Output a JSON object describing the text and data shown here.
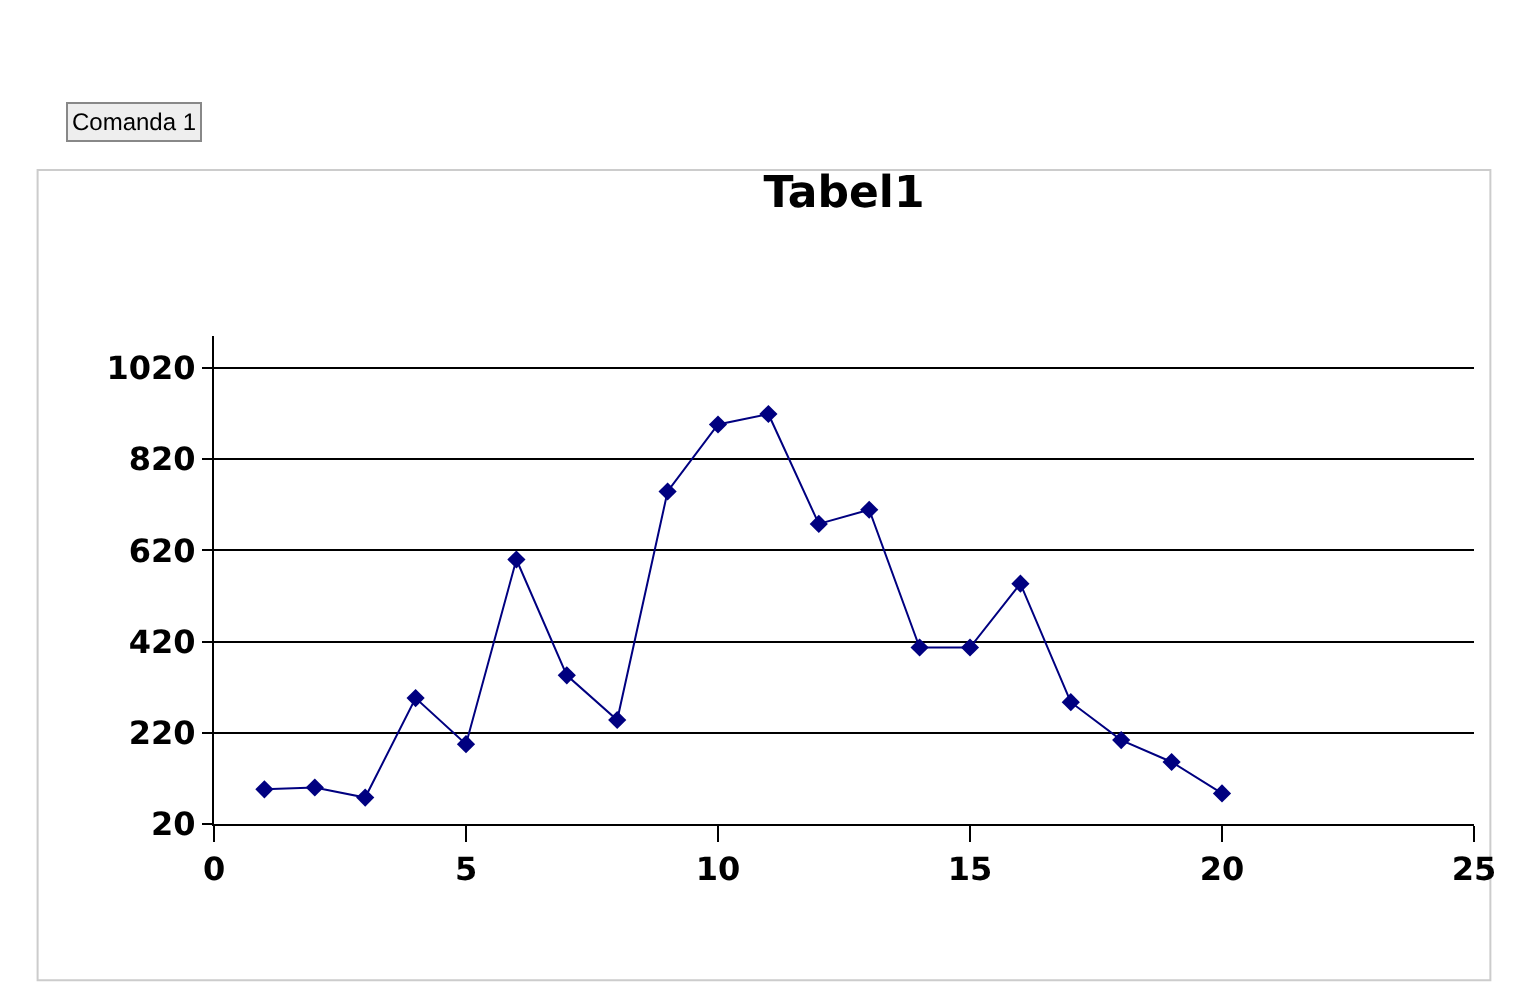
{
  "chart_data": {
    "type": "line",
    "title": "Tabel1",
    "annotations": [
      "Comanda 1"
    ],
    "x": [
      1,
      2,
      3,
      4,
      5,
      6,
      7,
      8,
      9,
      10,
      11,
      12,
      13,
      14,
      15,
      16,
      17,
      18,
      19,
      20
    ],
    "series": [
      {
        "color": "#000080",
        "values": [
          96,
          100,
          78,
          296,
          195,
          600,
          346,
          248,
          749,
          896,
          919,
          678,
          709,
          407,
          407,
          547,
          287,
          204,
          156,
          87
        ]
      }
    ],
    "xlim": [
      0,
      25
    ],
    "xticks": [
      0,
      5,
      10,
      15,
      20,
      25
    ],
    "ylim": [
      20,
      1090
    ],
    "yticks": [
      20,
      220,
      420,
      620,
      820,
      1020
    ],
    "grid": "y",
    "marker": "diamond",
    "line_style": "solid"
  }
}
